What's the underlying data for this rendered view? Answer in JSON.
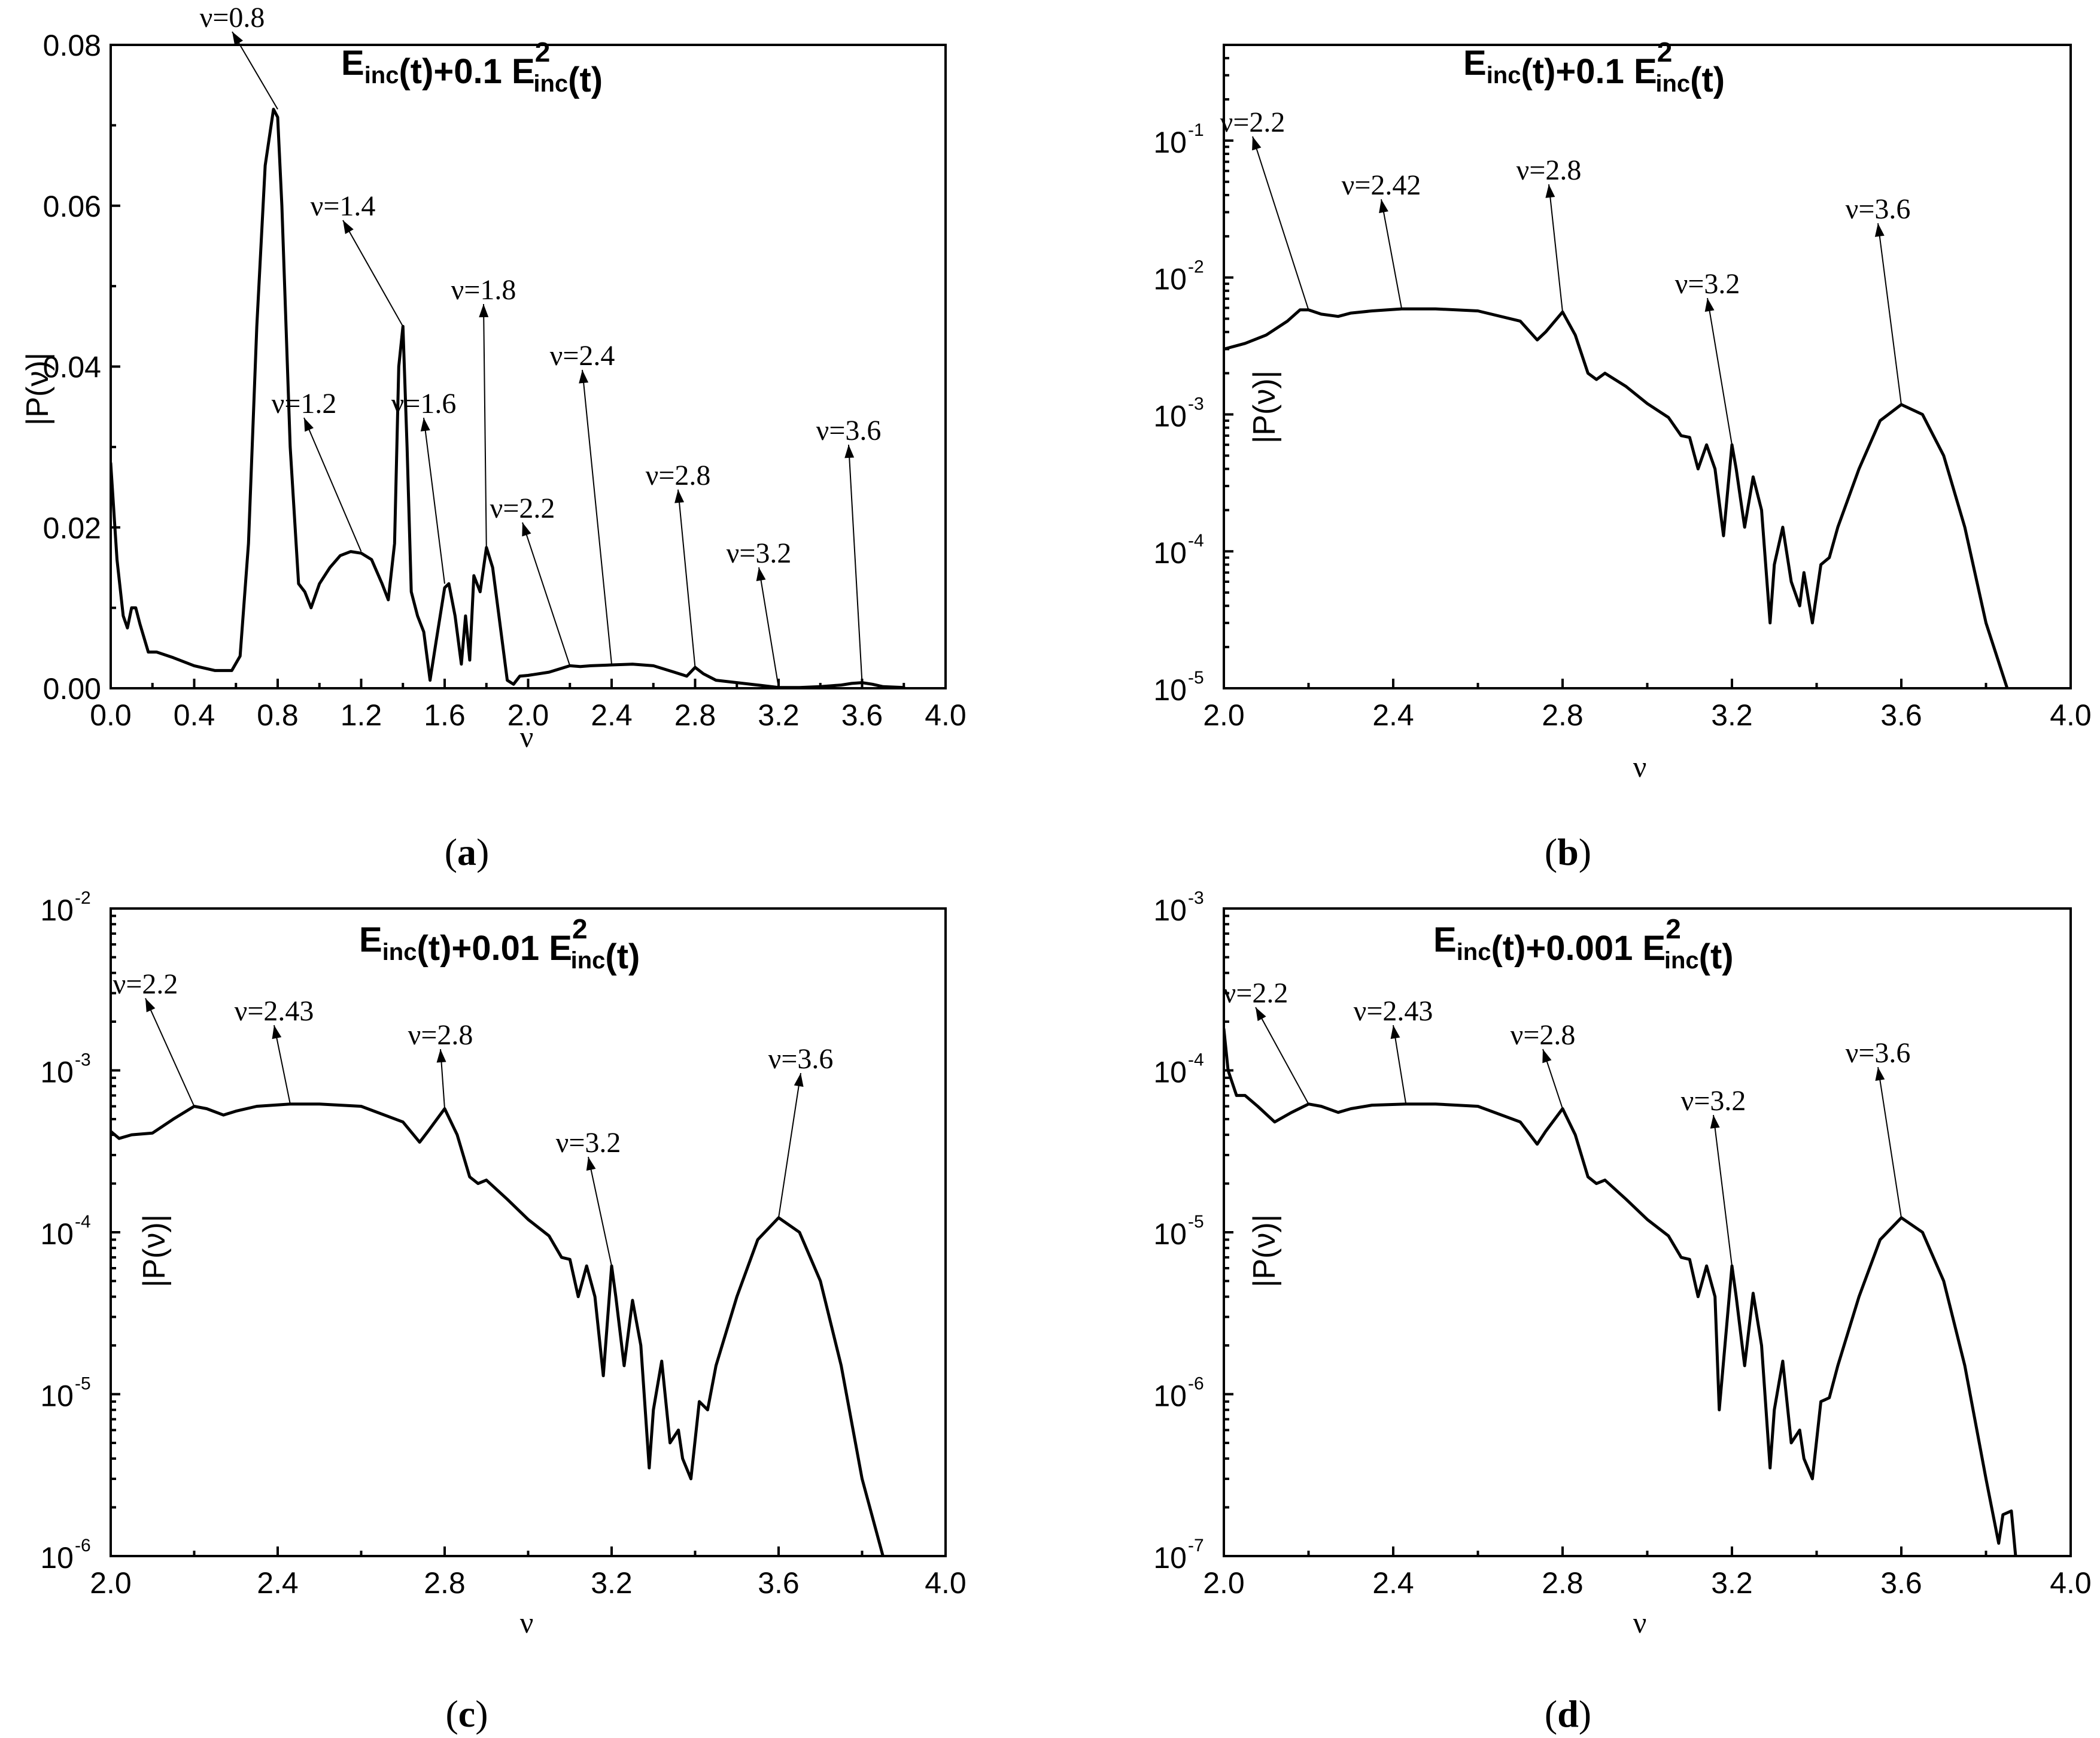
{
  "chart_data": [
    {
      "id": "a",
      "type": "line",
      "panel_label": "a",
      "title": {
        "base": "E",
        "sub": "inc",
        "mid": "(t)+0.1 E",
        "sup": "2",
        "sub2": "inc",
        "tail": "(t)"
      },
      "xlabel": "ν",
      "ylabel": "|P(ν)|",
      "xlim": [
        0,
        4
      ],
      "ylim": [
        0,
        0.08
      ],
      "yscale": "linear",
      "x_ticks": [
        "0.0",
        "0.4",
        "0.8",
        "1.2",
        "1.6",
        "2.0",
        "2.4",
        "2.8",
        "3.2",
        "3.6",
        "4.0"
      ],
      "y_ticks": [
        "0.00",
        "0.02",
        "0.04",
        "0.06",
        "0.08"
      ],
      "series": [
        {
          "x": [
            0.0,
            0.03,
            0.06,
            0.08,
            0.1,
            0.12,
            0.14,
            0.18,
            0.22,
            0.3,
            0.4,
            0.5,
            0.58,
            0.62,
            0.66,
            0.7,
            0.74,
            0.78,
            0.8,
            0.82,
            0.86,
            0.9,
            0.93,
            0.96,
            1.0,
            1.05,
            1.1,
            1.15,
            1.2,
            1.25,
            1.3,
            1.33,
            1.36,
            1.38,
            1.4,
            1.42,
            1.44,
            1.47,
            1.5,
            1.53,
            1.56,
            1.6,
            1.62,
            1.65,
            1.68,
            1.7,
            1.72,
            1.74,
            1.77,
            1.8,
            1.83,
            1.86,
            1.9,
            1.93,
            1.96,
            2.0,
            2.1,
            2.2,
            2.25,
            2.3,
            2.4,
            2.5,
            2.6,
            2.7,
            2.76,
            2.8,
            2.84,
            2.9,
            3.0,
            3.1,
            3.2,
            3.3,
            3.4,
            3.5,
            3.55,
            3.6,
            3.65,
            3.7,
            3.8
          ],
          "y": [
            0.028,
            0.016,
            0.009,
            0.0075,
            0.01,
            0.01,
            0.008,
            0.0045,
            0.0045,
            0.0038,
            0.0028,
            0.0022,
            0.0022,
            0.004,
            0.018,
            0.045,
            0.065,
            0.072,
            0.071,
            0.06,
            0.03,
            0.013,
            0.012,
            0.01,
            0.013,
            0.015,
            0.0165,
            0.017,
            0.0168,
            0.016,
            0.013,
            0.011,
            0.018,
            0.04,
            0.045,
            0.03,
            0.012,
            0.009,
            0.007,
            0.001,
            0.006,
            0.0125,
            0.013,
            0.009,
            0.003,
            0.009,
            0.0035,
            0.014,
            0.012,
            0.0175,
            0.015,
            0.009,
            0.001,
            0.0005,
            0.0015,
            0.0016,
            0.002,
            0.0028,
            0.0027,
            0.0028,
            0.0029,
            0.003,
            0.0028,
            0.002,
            0.0015,
            0.0026,
            0.0018,
            0.001,
            0.0007,
            0.0004,
            0.0001,
            0.0001,
            0.0002,
            0.0004,
            0.0006,
            0.0007,
            0.0005,
            0.0002,
            0.0001
          ]
        }
      ],
      "annotations": [
        {
          "text": "ν=0.8",
          "x": 0.8,
          "y": 0.072
        },
        {
          "text": "ν=1.2",
          "x": 1.2,
          "y": 0.017
        },
        {
          "text": "ν=1.4",
          "x": 1.4,
          "y": 0.045
        },
        {
          "text": "ν=1.6",
          "x": 1.6,
          "y": 0.013
        },
        {
          "text": "ν=1.8",
          "x": 1.8,
          "y": 0.0175
        },
        {
          "text": "ν=2.2",
          "x": 2.2,
          "y": 0.0028
        },
        {
          "text": "ν=2.4",
          "x": 2.4,
          "y": 0.003
        },
        {
          "text": "ν=2.8",
          "x": 2.8,
          "y": 0.0026
        },
        {
          "text": "ν=3.2",
          "x": 3.2,
          "y": 0.0001
        },
        {
          "text": "ν=3.6",
          "x": 3.6,
          "y": 0.0007
        }
      ]
    },
    {
      "id": "b",
      "type": "line",
      "panel_label": "b",
      "title": {
        "base": "E",
        "sub": "inc",
        "mid": "(t)+0.1 E",
        "sup": "2",
        "sub2": "inc",
        "tail": "(t)"
      },
      "xlabel": "ν",
      "ylabel": "|P(ν)|",
      "xlim": [
        2,
        4
      ],
      "ylim": [
        1e-05,
        0.5
      ],
      "yscale": "log",
      "x_ticks": [
        "2.0",
        "2.4",
        "2.8",
        "3.2",
        "3.6",
        "4.0"
      ],
      "y_ticks": [
        {
          "mant": "10",
          "exp": "-5",
          "value": 1e-05
        },
        {
          "mant": "10",
          "exp": "-4",
          "value": 0.0001
        },
        {
          "mant": "10",
          "exp": "-3",
          "value": 0.001
        },
        {
          "mant": "10",
          "exp": "-2",
          "value": 0.01
        },
        {
          "mant": "10",
          "exp": "-1",
          "value": 0.1
        }
      ],
      "series": [
        {
          "x": [
            2.0,
            2.05,
            2.1,
            2.15,
            2.18,
            2.2,
            2.23,
            2.27,
            2.3,
            2.35,
            2.42,
            2.5,
            2.6,
            2.7,
            2.74,
            2.76,
            2.8,
            2.83,
            2.86,
            2.88,
            2.9,
            2.95,
            3.0,
            3.05,
            3.08,
            3.1,
            3.12,
            3.14,
            3.16,
            3.18,
            3.2,
            3.21,
            3.23,
            3.25,
            3.27,
            3.29,
            3.3,
            3.32,
            3.34,
            3.36,
            3.37,
            3.39,
            3.41,
            3.43,
            3.45,
            3.5,
            3.55,
            3.6,
            3.65,
            3.7,
            3.75,
            3.8,
            3.85
          ],
          "y": [
            0.003,
            0.0033,
            0.0038,
            0.0048,
            0.0058,
            0.0058,
            0.0054,
            0.0052,
            0.0055,
            0.0057,
            0.0059,
            0.0059,
            0.0057,
            0.0048,
            0.0035,
            0.004,
            0.0056,
            0.0038,
            0.002,
            0.0018,
            0.002,
            0.0016,
            0.0012,
            0.00095,
            0.0007,
            0.00068,
            0.0004,
            0.0006,
            0.0004,
            0.00013,
            0.0006,
            0.0004,
            0.00015,
            0.00035,
            0.0002,
            3e-05,
            8e-05,
            0.00015,
            6e-05,
            4e-05,
            7e-05,
            3e-05,
            8e-05,
            9e-05,
            0.00015,
            0.0004,
            0.0009,
            0.00118,
            0.001,
            0.0005,
            0.00015,
            3e-05,
            1e-05
          ]
        }
      ],
      "annotations": [
        {
          "text": "ν=2.2",
          "x": 2.2,
          "y": 0.0058
        },
        {
          "text": "ν=2.42",
          "x": 2.42,
          "y": 0.0059
        },
        {
          "text": "ν=2.8",
          "x": 2.8,
          "y": 0.0056
        },
        {
          "text": "ν=3.2",
          "x": 3.2,
          "y": 0.0006
        },
        {
          "text": "ν=3.6",
          "x": 3.6,
          "y": 0.00118
        }
      ]
    },
    {
      "id": "c",
      "type": "line",
      "panel_label": "c",
      "title": {
        "base": "E",
        "sub": "inc",
        "mid": "(t)+0.01 E",
        "sup": "2",
        "sub2": "inc",
        "tail": "(t)"
      },
      "xlabel": "ν",
      "ylabel": "|P(ν)|",
      "xlim": [
        2,
        4
      ],
      "ylim": [
        1e-06,
        0.01
      ],
      "yscale": "log",
      "x_ticks": [
        "2.0",
        "2.4",
        "2.8",
        "3.2",
        "3.6",
        "4.0"
      ],
      "y_ticks": [
        {
          "mant": "10",
          "exp": "-6",
          "value": 1e-06
        },
        {
          "mant": "10",
          "exp": "-5",
          "value": 1e-05
        },
        {
          "mant": "10",
          "exp": "-4",
          "value": 0.0001
        },
        {
          "mant": "10",
          "exp": "-3",
          "value": 0.001
        },
        {
          "mant": "10",
          "exp": "-2",
          "value": 0.01
        }
      ],
      "series": [
        {
          "x": [
            2.0,
            2.02,
            2.05,
            2.1,
            2.15,
            2.2,
            2.23,
            2.27,
            2.3,
            2.35,
            2.43,
            2.5,
            2.6,
            2.7,
            2.74,
            2.76,
            2.8,
            2.83,
            2.86,
            2.88,
            2.9,
            2.95,
            3.0,
            3.05,
            3.08,
            3.1,
            3.12,
            3.14,
            3.16,
            3.18,
            3.2,
            3.21,
            3.23,
            3.25,
            3.27,
            3.29,
            3.3,
            3.32,
            3.34,
            3.36,
            3.37,
            3.39,
            3.41,
            3.43,
            3.45,
            3.5,
            3.55,
            3.6,
            3.65,
            3.7,
            3.75,
            3.8,
            3.85
          ],
          "y": [
            0.00042,
            0.00038,
            0.0004,
            0.00041,
            0.0005,
            0.0006,
            0.00058,
            0.00053,
            0.00056,
            0.0006,
            0.00062,
            0.00062,
            0.0006,
            0.00048,
            0.00036,
            0.00042,
            0.00058,
            0.0004,
            0.00022,
            0.0002,
            0.00021,
            0.00016,
            0.00012,
            9.5e-05,
            7e-05,
            6.8e-05,
            4e-05,
            6.2e-05,
            4e-05,
            1.3e-05,
            6.2e-05,
            4e-05,
            1.5e-05,
            3.8e-05,
            2e-05,
            3.5e-06,
            8e-06,
            1.6e-05,
            5e-06,
            6e-06,
            4e-06,
            3e-06,
            9e-06,
            8e-06,
            1.5e-05,
            4e-05,
            9e-05,
            0.000123,
            0.0001,
            5e-05,
            1.5e-05,
            3e-06,
            1e-06
          ]
        }
      ],
      "annotations": [
        {
          "text": "ν=2.2",
          "x": 2.2,
          "y": 0.0006
        },
        {
          "text": "ν=2.43",
          "x": 2.43,
          "y": 0.00062
        },
        {
          "text": "ν=2.8",
          "x": 2.8,
          "y": 0.00058
        },
        {
          "text": "ν=3.2",
          "x": 3.2,
          "y": 6.2e-05
        },
        {
          "text": "ν=3.6",
          "x": 3.6,
          "y": 0.000123
        }
      ]
    },
    {
      "id": "d",
      "type": "line",
      "panel_label": "d",
      "title": {
        "base": "E",
        "sub": "inc",
        "mid": "(t)+0.001 E",
        "sup": "2",
        "sub2": "inc",
        "tail": "(t)"
      },
      "xlabel": "ν",
      "ylabel": "|P(ν)|",
      "xlim": [
        2,
        4
      ],
      "ylim": [
        1e-07,
        0.001
      ],
      "yscale": "log",
      "x_ticks": [
        "2.0",
        "2.4",
        "2.8",
        "3.2",
        "3.6",
        "4.0"
      ],
      "y_ticks": [
        {
          "mant": "10",
          "exp": "-7",
          "value": 1e-07
        },
        {
          "mant": "10",
          "exp": "-6",
          "value": 1e-06
        },
        {
          "mant": "10",
          "exp": "-5",
          "value": 1e-05
        },
        {
          "mant": "10",
          "exp": "-4",
          "value": 0.0001
        },
        {
          "mant": "10",
          "exp": "-3",
          "value": 0.001
        }
      ],
      "series": [
        {
          "x": [
            2.0,
            2.01,
            2.03,
            2.05,
            2.08,
            2.12,
            2.16,
            2.2,
            2.23,
            2.27,
            2.3,
            2.35,
            2.43,
            2.5,
            2.6,
            2.7,
            2.74,
            2.76,
            2.8,
            2.83,
            2.86,
            2.88,
            2.9,
            2.95,
            3.0,
            3.05,
            3.08,
            3.1,
            3.12,
            3.14,
            3.16,
            3.17,
            3.2,
            3.21,
            3.23,
            3.25,
            3.27,
            3.29,
            3.3,
            3.32,
            3.34,
            3.36,
            3.37,
            3.39,
            3.41,
            3.43,
            3.45,
            3.5,
            3.55,
            3.6,
            3.65,
            3.7,
            3.75,
            3.8,
            3.83,
            3.84,
            3.86,
            3.87
          ],
          "y": [
            0.00018,
            0.0001,
            7e-05,
            7e-05,
            6e-05,
            4.8e-05,
            5.5e-05,
            6.2e-05,
            6e-05,
            5.5e-05,
            5.8e-05,
            6.1e-05,
            6.2e-05,
            6.2e-05,
            6e-05,
            4.8e-05,
            3.5e-05,
            4.2e-05,
            5.8e-05,
            4e-05,
            2.2e-05,
            2e-05,
            2.1e-05,
            1.6e-05,
            1.2e-05,
            9.5e-06,
            7e-06,
            6.8e-06,
            4e-06,
            6.2e-06,
            4e-06,
            8e-07,
            6.2e-06,
            4e-06,
            1.5e-06,
            4.2e-06,
            2e-06,
            3.5e-07,
            8e-07,
            1.6e-06,
            5e-07,
            6e-07,
            4e-07,
            3e-07,
            9e-07,
            9.5e-07,
            1.5e-06,
            4e-06,
            9e-06,
            1.23e-05,
            1e-05,
            5e-06,
            1.5e-06,
            3e-07,
            1.2e-07,
            1.8e-07,
            1.9e-07,
            1e-07
          ]
        }
      ],
      "annotations": [
        {
          "text": "ν=2.2",
          "x": 2.2,
          "y": 6.2e-05
        },
        {
          "text": "ν=2.43",
          "x": 2.43,
          "y": 6.2e-05
        },
        {
          "text": "ν=2.8",
          "x": 2.8,
          "y": 5.8e-05
        },
        {
          "text": "ν=3.2",
          "x": 3.2,
          "y": 6.2e-06
        },
        {
          "text": "ν=3.6",
          "x": 3.6,
          "y": 1.23e-05
        }
      ]
    }
  ]
}
